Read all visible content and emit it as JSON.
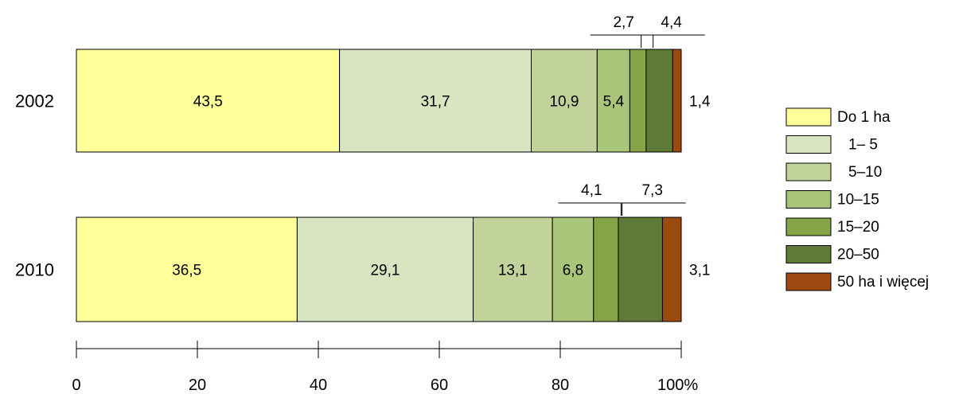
{
  "chart_data": {
    "type": "bar",
    "orientation": "horizontal",
    "stacked": true,
    "categories": [
      "2002",
      "2010"
    ],
    "series": [
      {
        "name": "Do 1 ha",
        "color": "#ffff99",
        "values": [
          43.5,
          36.5
        ],
        "labels": [
          "43,5",
          "36,5"
        ]
      },
      {
        "name": "1– 5",
        "color": "#d9e4c1",
        "values": [
          31.7,
          29.1
        ],
        "labels": [
          "31,7",
          "29,1"
        ]
      },
      {
        "name": "5–10",
        "color": "#c1d39a",
        "values": [
          10.9,
          13.1
        ],
        "labels": [
          "10,9",
          "13,1"
        ]
      },
      {
        "name": "10–15",
        "color": "#a8c57a",
        "values": [
          5.4,
          6.8
        ],
        "labels": [
          "5,4",
          "6,8"
        ]
      },
      {
        "name": "15–20",
        "color": "#84a447",
        "values": [
          2.7,
          4.1
        ],
        "labels": [
          "2,7",
          "4,1"
        ]
      },
      {
        "name": "20–50",
        "color": "#5f7a36",
        "values": [
          4.4,
          7.3
        ],
        "labels": [
          "4,4",
          "7,3"
        ]
      },
      {
        "name": "50 ha i więcej",
        "color": "#9c4a0f",
        "values": [
          1.4,
          3.1
        ],
        "labels": [
          "1,4",
          "3,1"
        ]
      }
    ],
    "xlim": [
      0,
      100
    ],
    "xticks": [
      "0",
      "20",
      "40",
      "60",
      "80",
      "100%"
    ],
    "legend": "right",
    "grid": false
  }
}
